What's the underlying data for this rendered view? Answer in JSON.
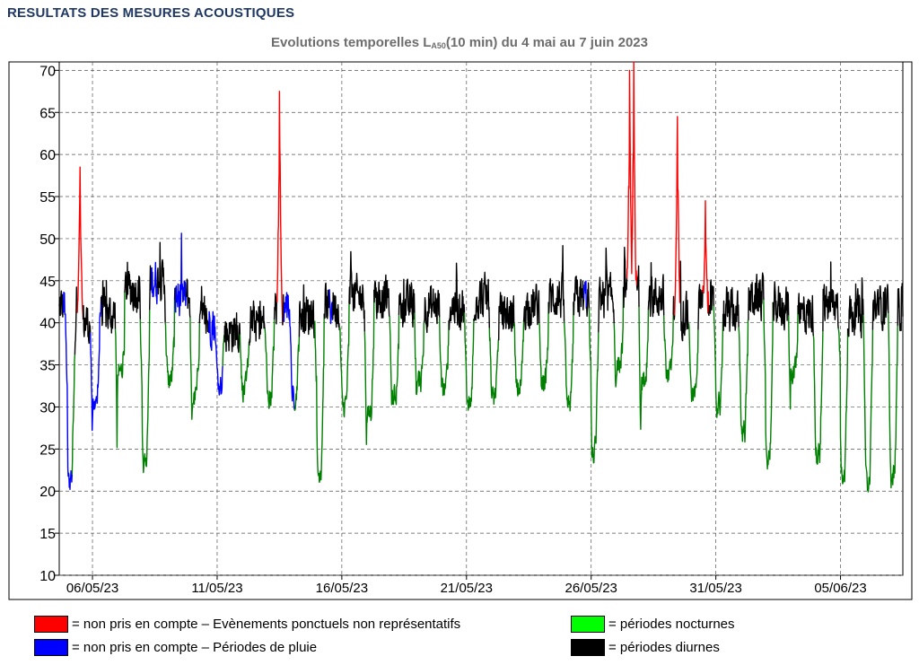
{
  "page_title": "RESULTATS DES MESURES ACOUSTIQUES",
  "chart_title": {
    "prefix": "Evolutions temporelles L",
    "subscript": "A50",
    "suffix": "(10 min) du 4 mai au 7 juin 2023"
  },
  "legend": [
    {
      "color": "#ff0000",
      "label": "= non pris en compte – Evènements ponctuels non représentatifs"
    },
    {
      "color": "#0000ff",
      "label": "= non pris en compte – Périodes de pluie"
    },
    {
      "color": "#00ff00",
      "label": "= périodes nocturnes"
    },
    {
      "color": "#000000",
      "label": "= périodes diurnes"
    }
  ],
  "chart_data": {
    "type": "line",
    "ylim": [
      10,
      71
    ],
    "yticks": [
      10,
      15,
      20,
      25,
      30,
      35,
      40,
      45,
      50,
      55,
      60,
      65,
      70
    ],
    "xlim": [
      "2023-05-04T16:00",
      "2023-06-07T12:00"
    ],
    "xticks": [
      {
        "date": "2023-05-06",
        "label": "06/05/23"
      },
      {
        "date": "2023-05-11",
        "label": "11/05/23"
      },
      {
        "date": "2023-05-16",
        "label": "16/05/23"
      },
      {
        "date": "2023-05-21",
        "label": "21/05/23"
      },
      {
        "date": "2023-05-26",
        "label": "26/05/23"
      },
      {
        "date": "2023-05-31",
        "label": "31/05/23"
      },
      {
        "date": "2023-06-05",
        "label": "05/06/23"
      }
    ],
    "grid": true,
    "series": [
      {
        "color": "#000000",
        "periods": "diurnes",
        "day_level_start_to_end": [
          42,
          40,
          41,
          44,
          45,
          43,
          40,
          39,
          40,
          42,
          41,
          42,
          43,
          43,
          42,
          42,
          42,
          43,
          41,
          42,
          43,
          43,
          43,
          44,
          43,
          41,
          42,
          41,
          43,
          42,
          41,
          42,
          41,
          42
        ]
      },
      {
        "color": "#008000",
        "periods": "nocturnes",
        "night_minimum_start_to_end": [
          29,
          23,
          21,
          30,
          34,
          23,
          33,
          31,
          33,
          32,
          31,
          31,
          22,
          30,
          29,
          31,
          33,
          32,
          30,
          31,
          32,
          33,
          30,
          24,
          35,
          33,
          34,
          31,
          30,
          27,
          24,
          34,
          24,
          22,
          21
        ]
      },
      {
        "color": "#ff0000",
        "periods": "non pris en compte – évènements",
        "peaks": [
          {
            "date": "2023-05-05T12:00",
            "max": 58.5
          },
          {
            "date": "2023-05-13T12:00",
            "max": 67.5
          },
          {
            "date": "2023-05-27T13:00",
            "max": 70
          },
          {
            "date": "2023-05-27T17:00",
            "max": 71
          },
          {
            "date": "2023-05-29T11:00",
            "max": 64.5
          },
          {
            "date": "2023-05-30T14:00",
            "max": 54.5
          }
        ]
      },
      {
        "color": "#0000ff",
        "periods": "non pris en compte – pluie",
        "intervals": [
          [
            "2023-05-04T20:00",
            "2023-05-05T04:00"
          ],
          [
            "2023-05-05T22:00",
            "2023-05-06T08:00"
          ],
          [
            "2023-05-08T09:00",
            "2023-05-08T14:00"
          ],
          [
            "2023-05-09T08:00",
            "2023-05-09T18:00"
          ],
          [
            "2023-05-10T16:00",
            "2023-05-11T05:00"
          ],
          [
            "2023-05-13T16:00",
            "2023-05-14T02:00"
          ],
          [
            "2023-05-15T12:00",
            "2023-05-15T15:00"
          ],
          [
            "2023-05-25T17:00",
            "2023-05-25T19:00"
          ]
        ]
      }
    ]
  }
}
